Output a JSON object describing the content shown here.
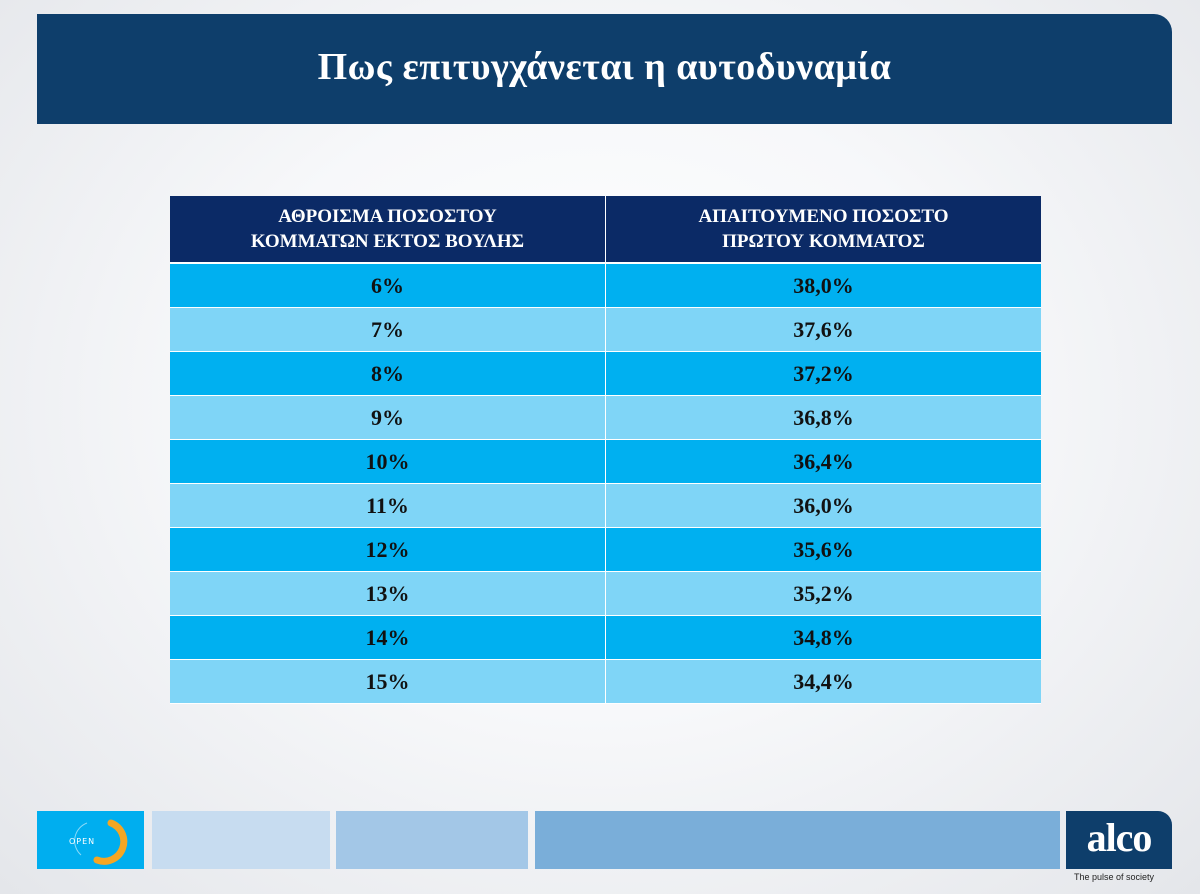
{
  "title": "Πως επιτυγχάνεται η αυτοδυναμία",
  "chart_data": {
    "type": "table",
    "columns": [
      "ΑΘΡΟΙΣΜΑ ΠΟΣΟΣΤΟΥ ΚΟΜΜΑΤΩΝ ΕΚΤΟΣ ΒΟΥΛΗΣ",
      "ΑΠΑΙΤΟΥΜΕΝΟ ΠΟΣΟΣΤΟ ΠΡΩΤΟΥ ΚΟΜΜΑΤΟΣ"
    ],
    "column_lines": [
      [
        "ΑΘΡΟΙΣΜΑ ΠΟΣΟΣΤΟΥ",
        "ΚΟΜΜΑΤΩΝ ΕΚΤΟΣ ΒΟΥΛΗΣ"
      ],
      [
        "ΑΠΑΙΤΟΥΜΕΝΟ ΠΟΣΟΣΤΟ",
        "ΠΡΩΤΟΥ ΚΟΜΜΑΤΟΣ"
      ]
    ],
    "rows": [
      [
        "6%",
        "38,0%"
      ],
      [
        "7%",
        "37,6%"
      ],
      [
        "8%",
        "37,2%"
      ],
      [
        "9%",
        "36,8%"
      ],
      [
        "10%",
        "36,4%"
      ],
      [
        "11%",
        "36,0%"
      ],
      [
        "12%",
        "35,6%"
      ],
      [
        "13%",
        "35,2%"
      ],
      [
        "14%",
        "34,8%"
      ],
      [
        "15%",
        "34,4%"
      ]
    ]
  },
  "footer": {
    "channel_logo": "OPEN",
    "brand": "alco",
    "tagline": "The pulse of society"
  },
  "colors": {
    "title_bar": "#0e3e6b",
    "header": "#0b2a66",
    "row_odd": "#00b0f0",
    "row_even": "#7fd5f7"
  }
}
